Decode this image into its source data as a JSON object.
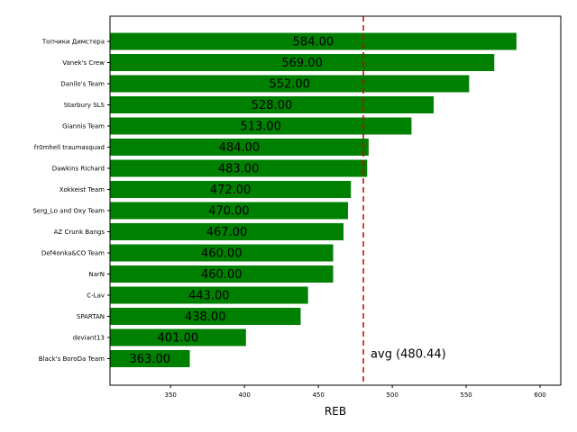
{
  "chart_data": {
    "type": "bar",
    "orientation": "horizontal",
    "categories": [
      "Топчики Димстера",
      "Vanek's Crew",
      "Danilo's Team",
      "Starbury SLS",
      "Giannis Team",
      "fr0mhell traumasquad",
      "Dawkins Richard",
      "Xokkeist Team",
      "Serg_Lo and Oxy Team",
      "AZ Crunk Bangs",
      "Def4onka&CO Team",
      "NarN",
      "C-Lav",
      "SPARTAN",
      "deviant13",
      "Black's BoroDa Team"
    ],
    "values": [
      584,
      569,
      552,
      528,
      513,
      484,
      483,
      472,
      470,
      467,
      460,
      460,
      443,
      438,
      401,
      363
    ],
    "value_labels": [
      "584.00",
      "569.00",
      "552.00",
      "528.00",
      "513.00",
      "484.00",
      "483.00",
      "472.00",
      "470.00",
      "467.00",
      "460.00",
      "460.00",
      "443.00",
      "438.00",
      "401.00",
      "363.00"
    ],
    "xlabel": "REB",
    "ylabel": "",
    "title": "",
    "xlim": [
      309,
      614
    ],
    "xticks": [
      350,
      400,
      450,
      500,
      550,
      600
    ],
    "bar_color": "#008000",
    "average": {
      "value": 480.44,
      "label": "avg (480.44)",
      "color": "#cc0000",
      "style": "dashed"
    },
    "grid": false,
    "legend": "none"
  }
}
